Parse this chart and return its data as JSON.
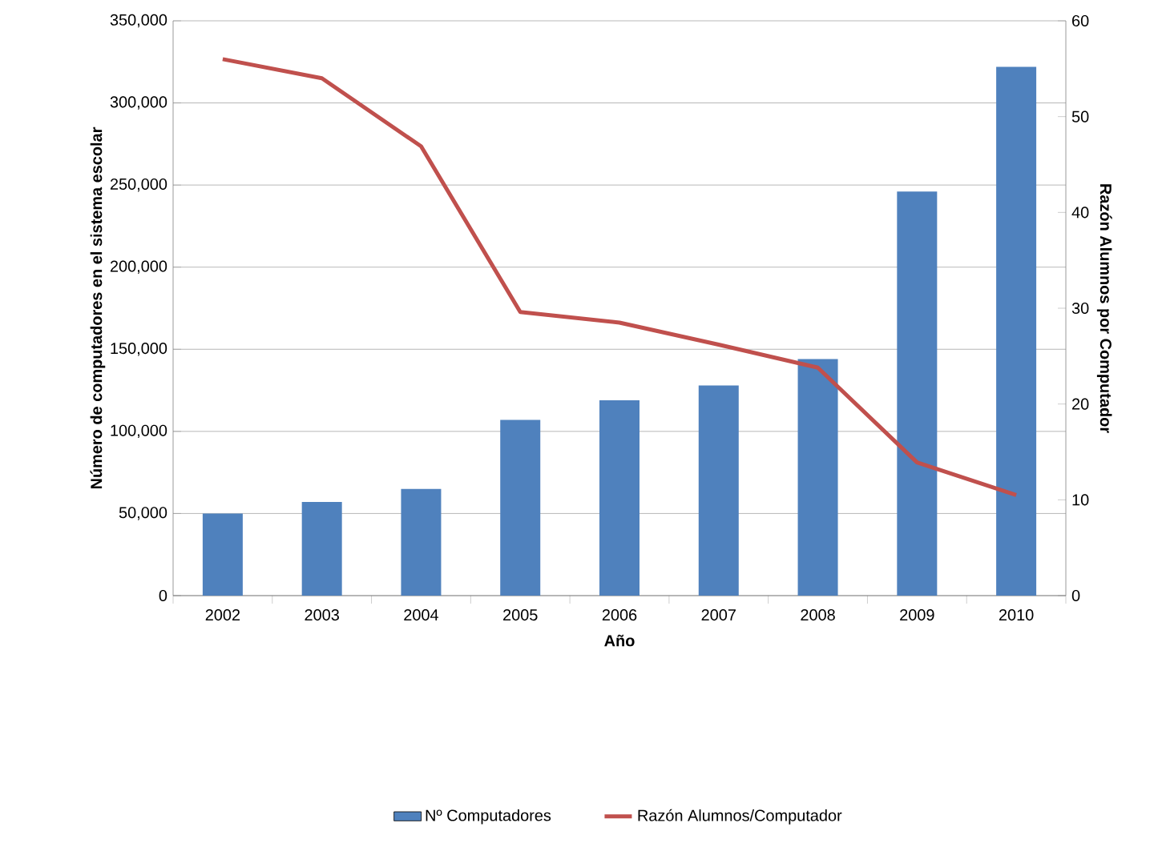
{
  "chart_data": {
    "type": "bar",
    "xlabel": "Año",
    "ylabel": "Número de computadores en el sistema escolar",
    "y2label": "Razón Alumnos por Computador",
    "categories": [
      "2002",
      "2003",
      "2004",
      "2005",
      "2006",
      "2007",
      "2008",
      "2009",
      "2010"
    ],
    "series": [
      {
        "name": "Nº Computadores",
        "color": "#4f81bd",
        "values": [
          50000,
          57000,
          65000,
          107000,
          119000,
          128000,
          144000,
          246000,
          322000
        ]
      },
      {
        "name": "Razón Alumnos/Computador",
        "type": "line",
        "axis": "y2",
        "color": "#c0504d",
        "values": [
          56.0,
          54.0,
          46.9,
          29.6,
          28.5,
          26.2,
          23.8,
          13.9,
          10.5
        ]
      }
    ],
    "ylim": [
      0,
      350000
    ],
    "yticks": [
      {
        "value": 0,
        "label": "0"
      },
      {
        "value": 50000,
        "label": "50,000"
      },
      {
        "value": 100000,
        "label": "100,000"
      },
      {
        "value": 150000,
        "label": "150,000"
      },
      {
        "value": 200000,
        "label": "200,000"
      },
      {
        "value": 250000,
        "label": "250,000"
      },
      {
        "value": 300000,
        "label": "300,000"
      },
      {
        "value": 350000,
        "label": "350,000"
      }
    ],
    "y2lim": [
      0,
      60
    ],
    "y2ticks": [
      0,
      10,
      20,
      30,
      40,
      50,
      60
    ],
    "grid": "y",
    "legend": "bottom",
    "marker": "none",
    "line_style": "solid"
  }
}
